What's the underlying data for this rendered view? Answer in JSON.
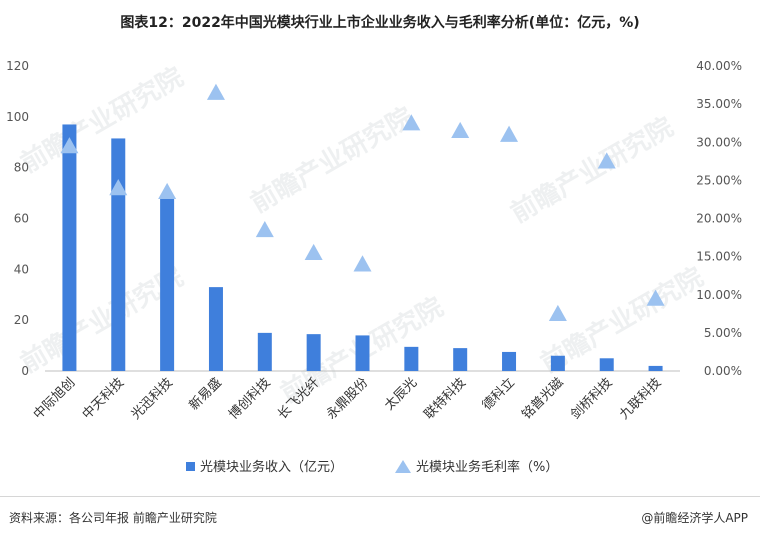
{
  "title": "图表12：2022年中国光模块行业上市企业业务收入与毛利率分析(单位：亿元，%)",
  "watermark": "前瞻产业研究院",
  "footer": {
    "source": "资料来源：各公司年报 前瞻产业研究院",
    "brand": "@前瞻经济学人APP"
  },
  "colors": {
    "bar": "#3f7fdc",
    "triangle": "#9cc2f0"
  },
  "chart_data": {
    "type": "bar",
    "categories": [
      "中际旭创",
      "中天科技",
      "光迅科技",
      "新易盛",
      "博创科技",
      "长飞光纤",
      "永鼎股份",
      "太辰光",
      "联特科技",
      "德科立",
      "铭普光磁",
      "剑桥科技",
      "九联科技"
    ],
    "series": [
      {
        "name": "光模块业务收入（亿元）",
        "kind": "bar",
        "axis": "left",
        "values": [
          97,
          91.5,
          68.5,
          33,
          15,
          14.5,
          14,
          9.5,
          9,
          7.5,
          6,
          5,
          2
        ]
      },
      {
        "name": "光模块业务毛利率（%）",
        "kind": "marker",
        "axis": "right",
        "values": [
          29.5,
          24,
          23.5,
          36.5,
          18.5,
          15.5,
          14,
          32.5,
          31.5,
          31,
          7.5,
          27.5,
          9.5
        ]
      }
    ],
    "left_axis": {
      "min": 0,
      "max": 120,
      "ticks": [
        "0",
        "20",
        "40",
        "60",
        "80",
        "100",
        "120"
      ]
    },
    "right_axis": {
      "min": 0,
      "max": 40,
      "ticks": [
        "0.00%",
        "5.00%",
        "10.00%",
        "15.00%",
        "20.00%",
        "25.00%",
        "30.00%",
        "35.00%",
        "40.00%"
      ]
    },
    "legend_position": "bottom",
    "grid": false
  }
}
